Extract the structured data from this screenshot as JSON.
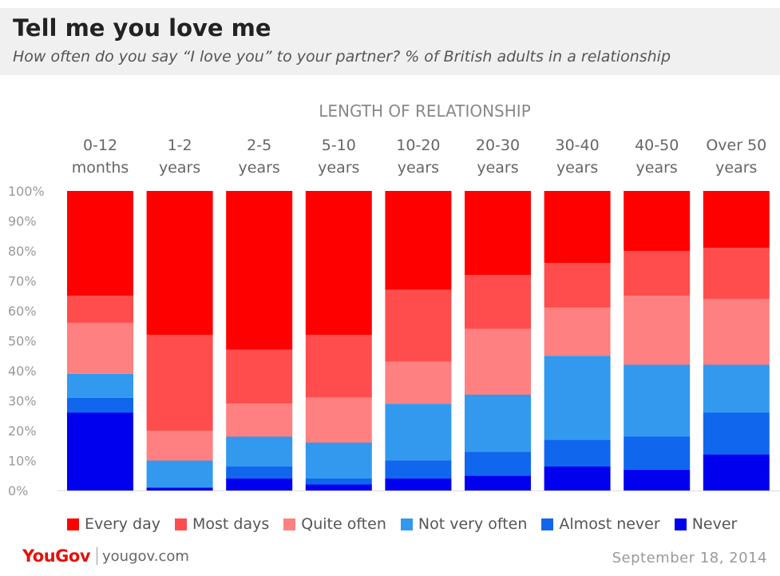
{
  "title": "Tell me you love me",
  "subtitle": "How often do you say “I love you” to your partner? % of British adults in a relationship",
  "footer": {
    "brand": "YouGov",
    "site": "yougov.com",
    "date": "September 18, 2014"
  },
  "chart_data": {
    "type": "bar",
    "stacked": true,
    "xlabel": "LENGTH OF RELATIONSHIP",
    "ylabel": "",
    "ylim": [
      0,
      100
    ],
    "yticks": [
      "0%",
      "10%",
      "20%",
      "30%",
      "40%",
      "50%",
      "60%",
      "70%",
      "80%",
      "90%",
      "100%"
    ],
    "categories": [
      [
        "0-12",
        "months"
      ],
      [
        "1-2",
        "years"
      ],
      [
        "2-5",
        "years"
      ],
      [
        "5-10",
        "years"
      ],
      [
        "10-20",
        "years"
      ],
      [
        "20-30",
        "years"
      ],
      [
        "30-40",
        "years"
      ],
      [
        "40-50",
        "years"
      ],
      [
        "Over 50",
        "years"
      ]
    ],
    "series": [
      {
        "name": "Never",
        "color": "#0000ee",
        "values": [
          26,
          1,
          4,
          2,
          4,
          5,
          8,
          7,
          12
        ]
      },
      {
        "name": "Almost never",
        "color": "#1166ee",
        "values": [
          5,
          0,
          4,
          2,
          6,
          8,
          9,
          11,
          14
        ]
      },
      {
        "name": "Not very often",
        "color": "#3399ee",
        "values": [
          8,
          9,
          10,
          12,
          19,
          19,
          28,
          24,
          16
        ]
      },
      {
        "name": "Quite often",
        "color": "#ff8080",
        "values": [
          17,
          10,
          11,
          15,
          14,
          22,
          16,
          23,
          22
        ]
      },
      {
        "name": "Most days",
        "color": "#ff4d4d",
        "values": [
          9,
          32,
          18,
          21,
          24,
          18,
          15,
          15,
          17
        ]
      },
      {
        "name": "Every day",
        "color": "#ff0000",
        "values": [
          35,
          48,
          53,
          48,
          33,
          28,
          24,
          20,
          19
        ]
      }
    ],
    "legend_order": [
      "Every day",
      "Most days",
      "Quite often",
      "Not very often",
      "Almost never",
      "Never"
    ],
    "legend_position": "bottom",
    "grid": false
  }
}
